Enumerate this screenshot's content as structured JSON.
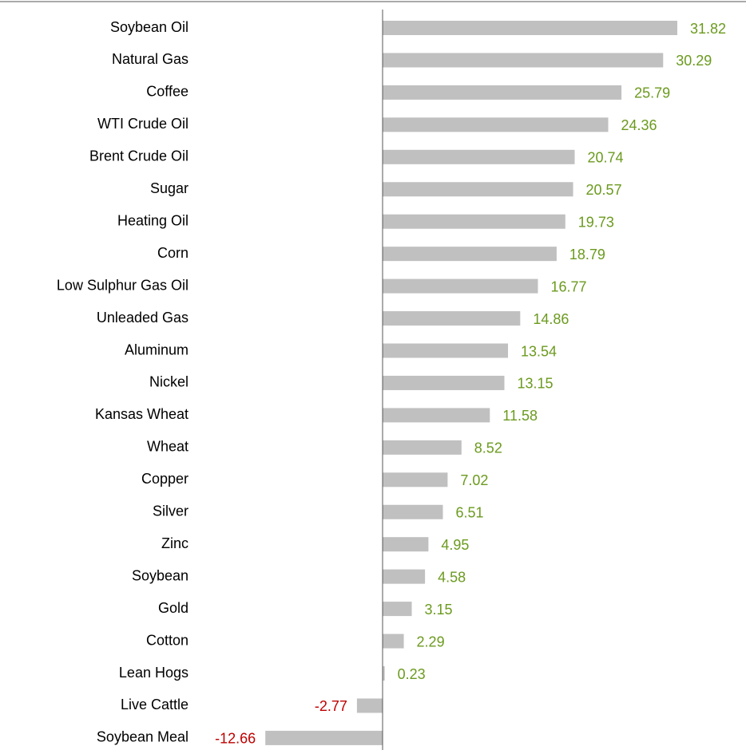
{
  "chart_data": {
    "type": "bar",
    "orientation": "horizontal",
    "categories": [
      "Soybean Oil",
      "Natural Gas",
      "Coffee",
      "WTI Crude Oil",
      "Brent Crude Oil",
      "Sugar",
      "Heating Oil",
      "Corn",
      "Low Sulphur Gas Oil",
      "Unleaded Gas",
      "Aluminum",
      "Nickel",
      "Kansas Wheat",
      "Wheat",
      "Copper",
      "Silver",
      "Zinc",
      "Soybean",
      "Gold",
      "Cotton",
      "Lean Hogs",
      "Live Cattle",
      "Soybean Meal"
    ],
    "values": [
      31.82,
      30.29,
      25.79,
      24.36,
      20.74,
      20.57,
      19.73,
      18.79,
      16.77,
      14.86,
      13.54,
      13.15,
      11.58,
      8.52,
      7.02,
      6.51,
      4.95,
      4.58,
      3.15,
      2.29,
      0.23,
      -2.77,
      -12.66
    ],
    "color": "#c0c0c0",
    "positive_label_color": "#6b9a1e",
    "negative_label_color": "#c00000"
  }
}
